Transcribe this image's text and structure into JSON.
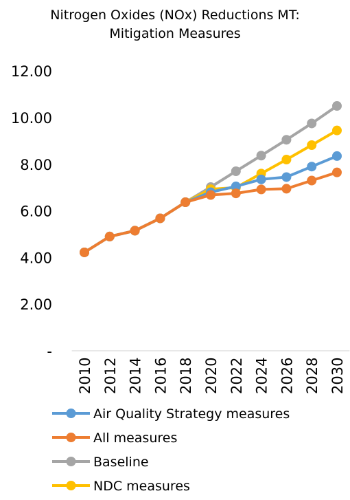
{
  "chart_data": {
    "type": "line",
    "title": "Nitrogen Oxides (NOx) Reductions MT:",
    "subtitle": "Mitigation Measures",
    "x": [
      "2010",
      "2012",
      "2014",
      "2016",
      "2018",
      "2020",
      "2022",
      "2024",
      "2026",
      "2028",
      "2030"
    ],
    "ylim": [
      0,
      12
    ],
    "yticks": [
      {
        "value": 0,
        "label": "-"
      },
      {
        "value": 2,
        "label": "2.00"
      },
      {
        "value": 4,
        "label": "4.00"
      },
      {
        "value": 6,
        "label": "6.00"
      },
      {
        "value": 8,
        "label": "8.00"
      },
      {
        "value": 10,
        "label": "10.00"
      },
      {
        "value": 12,
        "label": "12.00"
      }
    ],
    "grid": false,
    "legend_position": "bottom",
    "series": [
      {
        "name": "Baseline",
        "color": "#a5a5a5",
        "values": [
          4.22,
          4.9,
          5.15,
          5.68,
          6.37,
          7.02,
          7.7,
          8.37,
          9.05,
          9.75,
          10.5
        ]
      },
      {
        "name": "NDC measures",
        "color": "#ffc000",
        "values": [
          4.22,
          4.9,
          5.15,
          5.68,
          6.37,
          6.93,
          7.0,
          7.6,
          8.2,
          8.82,
          9.45
        ]
      },
      {
        "name": "Air Quality Strategy measures",
        "color": "#5b9bd5",
        "values": [
          4.22,
          4.9,
          5.15,
          5.68,
          6.37,
          6.8,
          7.05,
          7.35,
          7.45,
          7.9,
          8.35
        ]
      },
      {
        "name": "All measures",
        "color": "#ed7d31",
        "values": [
          4.22,
          4.9,
          5.15,
          5.68,
          6.37,
          6.68,
          6.75,
          6.92,
          6.95,
          7.3,
          7.65
        ]
      }
    ],
    "legend_order": [
      "Air Quality Strategy measures",
      "All measures",
      "Baseline",
      "NDC measures"
    ]
  }
}
